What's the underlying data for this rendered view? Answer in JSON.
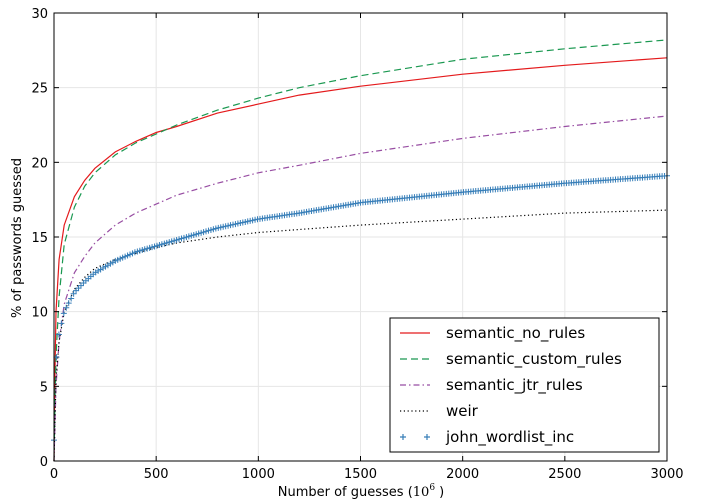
{
  "chart_data": {
    "type": "line",
    "xlabel": "Number of guesses (",
    "xlabel_power_base": "10",
    "xlabel_power_exp": "6",
    "xlabel_close": " )",
    "ylabel": "% of passwords guessed",
    "xlim": [
      0,
      3000
    ],
    "ylim": [
      0,
      30
    ],
    "xticks": [
      "0",
      "500",
      "1000",
      "1500",
      "2000",
      "2500",
      "3000"
    ],
    "yticks": [
      "0",
      "5",
      "10",
      "15",
      "20",
      "25",
      "30"
    ],
    "grid": true,
    "legend_position": "lower-right",
    "series": [
      {
        "name": "semantic_no_rules",
        "color": "#e41a1c",
        "style": "solid",
        "x": [
          0,
          5,
          10,
          25,
          50,
          100,
          150,
          200,
          300,
          400,
          500,
          600,
          800,
          1000,
          1200,
          1500,
          2000,
          2500,
          3000
        ],
        "y": [
          0,
          6,
          10,
          13.5,
          15.8,
          17.7,
          18.8,
          19.6,
          20.7,
          21.4,
          22.0,
          22.4,
          23.3,
          23.9,
          24.5,
          25.1,
          25.9,
          26.5,
          27.0
        ]
      },
      {
        "name": "semantic_custom_rules",
        "color": "#1a9850",
        "style": "dashed",
        "x": [
          0,
          5,
          10,
          25,
          50,
          100,
          150,
          200,
          300,
          400,
          500,
          600,
          800,
          1000,
          1200,
          1500,
          2000,
          2500,
          3000
        ],
        "y": [
          0,
          4,
          7,
          11,
          14.5,
          17.0,
          18.4,
          19.3,
          20.5,
          21.3,
          21.9,
          22.5,
          23.5,
          24.3,
          25.0,
          25.8,
          26.9,
          27.6,
          28.2
        ]
      },
      {
        "name": "semantic_jtr_rules",
        "color": "#984ea3",
        "style": "dashdot",
        "x": [
          0,
          10,
          25,
          50,
          100,
          150,
          200,
          300,
          400,
          500,
          600,
          800,
          1000,
          1200,
          1500,
          2000,
          2500,
          3000
        ],
        "y": [
          0,
          5,
          8,
          10.5,
          12.6,
          13.7,
          14.6,
          15.8,
          16.6,
          17.2,
          17.8,
          18.6,
          19.3,
          19.8,
          20.6,
          21.6,
          22.4,
          23.1
        ]
      },
      {
        "name": "weir",
        "color": "#000000",
        "style": "dotted",
        "x": [
          0,
          10,
          25,
          50,
          100,
          150,
          200,
          300,
          400,
          500,
          600,
          800,
          1000,
          1200,
          1500,
          2000,
          2500,
          3000
        ],
        "y": [
          0,
          5.5,
          8,
          10,
          11.5,
          12.3,
          12.9,
          13.5,
          13.9,
          14.3,
          14.6,
          15.0,
          15.3,
          15.5,
          15.8,
          16.2,
          16.6,
          16.8
        ]
      },
      {
        "name": "john_wordlist_inc",
        "color": "#377eb8",
        "style": "markers-plus",
        "x": [
          0,
          10,
          25,
          50,
          100,
          150,
          200,
          300,
          400,
          500,
          600,
          800,
          1000,
          1200,
          1500,
          2000,
          2500,
          3000
        ],
        "y": [
          1.4,
          6.7,
          8.6,
          10.0,
          11.3,
          12.0,
          12.6,
          13.4,
          14.0,
          14.4,
          14.8,
          15.6,
          16.2,
          16.6,
          17.3,
          18.0,
          18.6,
          19.1
        ]
      }
    ]
  }
}
